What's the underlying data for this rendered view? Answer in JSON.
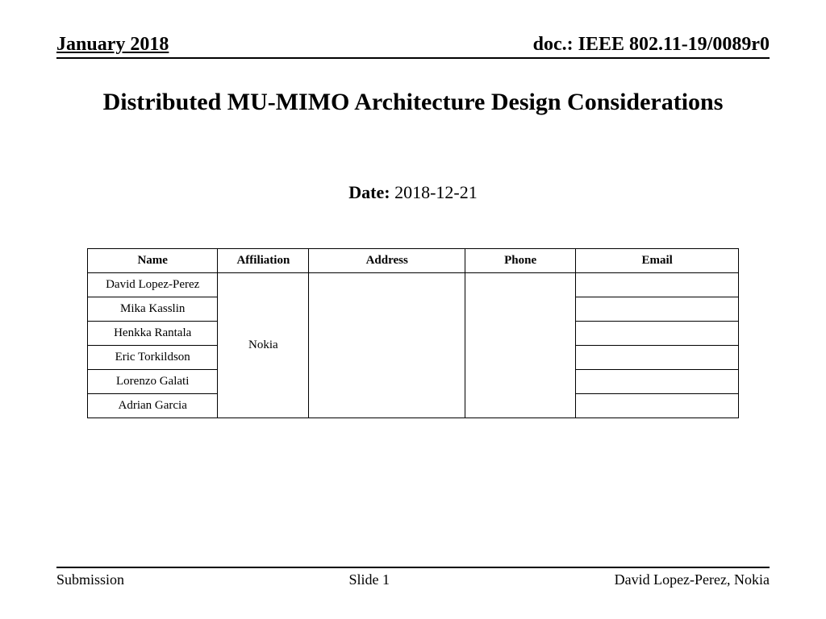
{
  "header": {
    "left": "January 2018",
    "right": "doc.: IEEE 802.11-19/0089r0"
  },
  "title": "Distributed MU-MIMO Architecture Design Considerations",
  "date": {
    "label": "Date:",
    "value": "2018-12-21"
  },
  "table": {
    "columns": [
      "Name",
      "Affiliation",
      "Address",
      "Phone",
      "Email"
    ],
    "affiliation": "Nokia",
    "rows": [
      {
        "name": "David Lopez-Perez",
        "address": "",
        "phone": "",
        "email": ""
      },
      {
        "name": "Mika Kasslin",
        "address": "",
        "phone": "",
        "email": ""
      },
      {
        "name": "Henkka Rantala",
        "address": "",
        "phone": "",
        "email": ""
      },
      {
        "name": "Eric Torkildson",
        "address": "",
        "phone": "",
        "email": ""
      },
      {
        "name": "Lorenzo Galati",
        "address": "",
        "phone": "",
        "email": ""
      },
      {
        "name": "Adrian Garcia",
        "address": "",
        "phone": "",
        "email": ""
      }
    ]
  },
  "footer": {
    "left": "Submission",
    "center": "Slide 1",
    "right": "David Lopez-Perez, Nokia"
  },
  "style": {
    "page_bg": "#ffffff",
    "text_color": "#000000",
    "rule_color": "#000000",
    "font_family": "Times New Roman"
  }
}
